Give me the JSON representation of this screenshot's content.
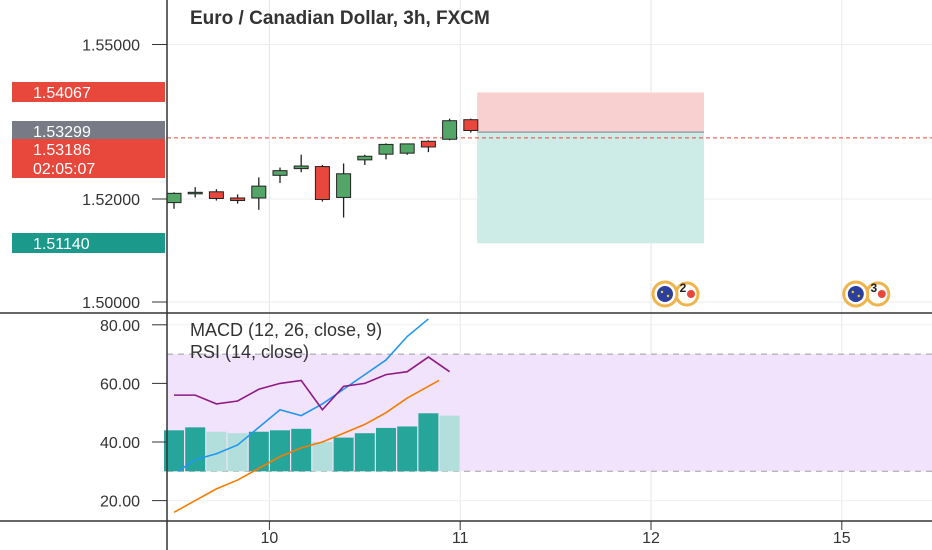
{
  "chart_data": {
    "type": "candlestick",
    "title": "Euro / Canadian Dollar, 3h, FXCM",
    "price_axis": {
      "ticks": [
        "1.55000",
        "1.52000",
        "1.50000"
      ],
      "tick_values": [
        1.55,
        1.52,
        1.5
      ]
    },
    "price_tags": [
      {
        "label": "1.54067",
        "value": 1.54067,
        "color": "#e8473b",
        "role": "stop-loss"
      },
      {
        "label": "1.53299",
        "value": 1.53299,
        "color": "#787b86",
        "role": "entry"
      },
      {
        "label": "1.53186",
        "value": 1.53186,
        "color": "#e8473b",
        "role": "last-price"
      },
      {
        "label": "02:05:07",
        "value": 1.5285,
        "color": "#e8473b",
        "role": "countdown"
      },
      {
        "label": "1.51140",
        "value": 1.5114,
        "color": "#1b998b",
        "role": "take-profit"
      }
    ],
    "x_axis": {
      "ticks": [
        "10",
        "11",
        "12",
        "15"
      ],
      "tick_positions": [
        4.5,
        13.5,
        22.5,
        31.5
      ]
    },
    "candles": [
      {
        "i": 0,
        "o": 1.5193,
        "h": 1.5213,
        "l": 1.5181,
        "c": 1.5211
      },
      {
        "i": 1,
        "o": 1.5212,
        "h": 1.5223,
        "l": 1.5203,
        "c": 1.5213
      },
      {
        "i": 2,
        "o": 1.5214,
        "h": 1.5219,
        "l": 1.5197,
        "c": 1.5201
      },
      {
        "i": 3,
        "o": 1.5202,
        "h": 1.5209,
        "l": 1.5191,
        "c": 1.5197
      },
      {
        "i": 4,
        "o": 1.5202,
        "h": 1.5242,
        "l": 1.5179,
        "c": 1.5225
      },
      {
        "i": 5,
        "o": 1.5246,
        "h": 1.5261,
        "l": 1.5231,
        "c": 1.5255
      },
      {
        "i": 6,
        "o": 1.5259,
        "h": 1.5286,
        "l": 1.5252,
        "c": 1.5264
      },
      {
        "i": 7,
        "o": 1.5263,
        "h": 1.5266,
        "l": 1.5195,
        "c": 1.5199
      },
      {
        "i": 8,
        "o": 1.5203,
        "h": 1.5269,
        "l": 1.5164,
        "c": 1.5249
      },
      {
        "i": 9,
        "o": 1.5276,
        "h": 1.5286,
        "l": 1.5266,
        "c": 1.5283
      },
      {
        "i": 10,
        "o": 1.5287,
        "h": 1.5308,
        "l": 1.5277,
        "c": 1.5306
      },
      {
        "i": 11,
        "o": 1.5289,
        "h": 1.5306,
        "l": 1.5286,
        "c": 1.5307
      },
      {
        "i": 12,
        "o": 1.5312,
        "h": 1.5314,
        "l": 1.5291,
        "c": 1.5301
      },
      {
        "i": 13,
        "o": 1.5316,
        "h": 1.5356,
        "l": 1.5314,
        "c": 1.5352
      },
      {
        "i": 14,
        "o": 1.5354,
        "h": 1.5356,
        "l": 1.5329,
        "c": 1.5333
      }
    ],
    "position": {
      "type": "short",
      "start_index": 14.3,
      "end_index": 25,
      "entry": 1.53299,
      "stop": 1.54067,
      "target": 1.5114
    },
    "last_price_line": 1.53186,
    "events": [
      {
        "label": "2",
        "x_index": 22.5
      },
      {
        "label": "3",
        "x_index": 31.5
      }
    ],
    "indicators": {
      "labels": [
        "MACD (12, 26, close, 9)",
        "RSI (14, close)"
      ],
      "axis_ticks": [
        "80.00",
        "60.00",
        "40.00",
        "20.00"
      ],
      "axis_values": [
        80,
        60,
        40,
        20
      ],
      "rsi_band": [
        30,
        70
      ],
      "rsi": [
        56,
        56,
        53,
        54,
        58,
        60,
        61,
        51,
        59,
        60,
        63,
        64,
        69,
        64
      ],
      "macd_line": [
        30,
        34,
        36,
        39,
        45,
        51,
        49,
        53,
        58,
        63,
        68,
        76,
        82
      ],
      "macd_line_x": [
        0.2,
        1,
        2,
        3,
        4,
        5,
        6,
        7,
        8,
        9,
        10,
        11,
        12
      ],
      "signal_line": [
        16,
        20,
        24,
        27,
        31,
        35,
        38,
        40,
        43,
        46,
        50,
        55,
        61
      ],
      "signal_line_x": [
        0,
        1,
        2,
        3,
        4,
        5,
        6,
        7,
        8,
        9,
        10,
        11,
        12.5
      ],
      "histogram": [
        44,
        45,
        43.5,
        43,
        43.5,
        44,
        44.5,
        40,
        41.5,
        43,
        44.8,
        45.3,
        49.8,
        49
      ],
      "histogram_colors": [
        "#26a69a",
        "#26a69a",
        "#b2dfdb",
        "#b2dfdb",
        "#26a69a",
        "#26a69a",
        "#26a69a",
        "#b2dfdb",
        "#26a69a",
        "#26a69a",
        "#26a69a",
        "#26a69a",
        "#26a69a",
        "#b2dfdb"
      ]
    }
  },
  "colors": {
    "up": "#53a568",
    "down": "#e8473b",
    "stop_zone": "#f8d0cf",
    "target_zone": "#cdebe7",
    "rsi": "#8e1a86",
    "macd": "#2196f3",
    "signal": "#f57c00",
    "rsi_band_fill": "#f1e3fb"
  }
}
